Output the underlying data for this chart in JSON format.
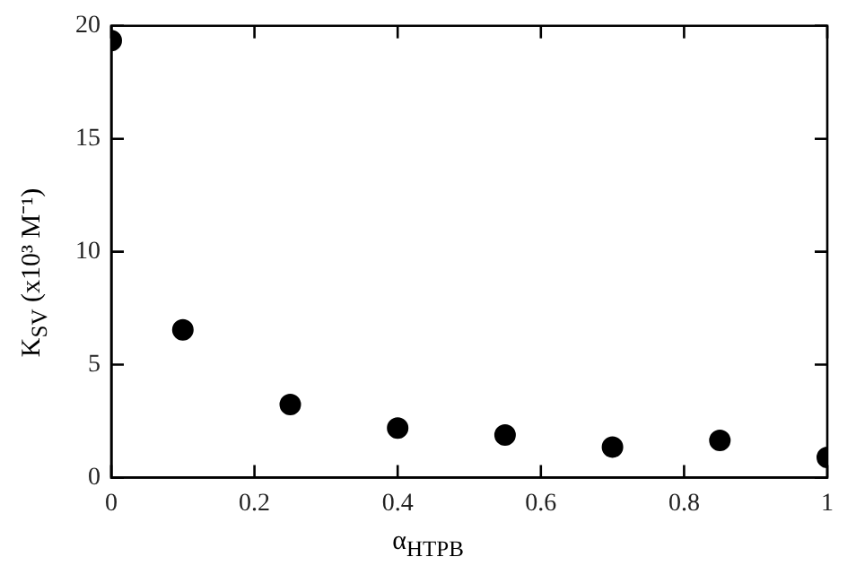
{
  "chart_data": {
    "type": "scatter",
    "xlabel": "α$_{HTPB}$",
    "ylabel": "K$_{SV}$ (x10³ M⁻¹)",
    "x": [
      0,
      0.1,
      0.25,
      0.4,
      0.55,
      0.7,
      0.85,
      1
    ],
    "series": [
      {
        "color": "#000000",
        "values": [
          19.35,
          6.54,
          3.23,
          2.19,
          1.88,
          1.35,
          1.64,
          0.89
        ]
      }
    ],
    "xlim": [
      0,
      1
    ],
    "xticks": [
      0,
      0.2,
      0.4,
      0.6,
      0.8,
      1
    ],
    "ylim": [
      0,
      20
    ],
    "yticks": [
      0,
      5,
      10,
      15,
      20
    ],
    "grid": false,
    "legend": false,
    "marker": "circle"
  }
}
